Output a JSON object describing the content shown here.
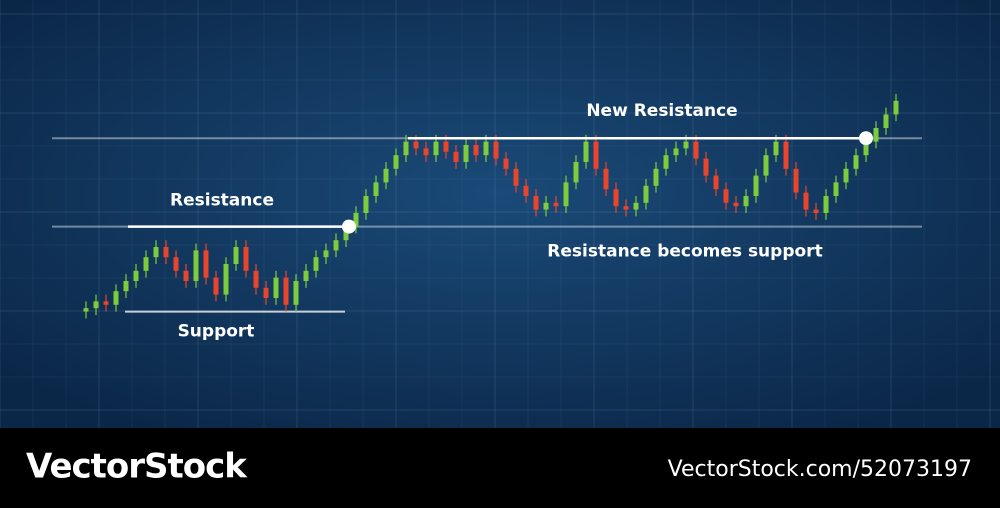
{
  "chart_data": {
    "type": "candlestick",
    "open": [
      26,
      27,
      29,
      28,
      32,
      35,
      38,
      42,
      45,
      42,
      38,
      35,
      44,
      36,
      31,
      40,
      45,
      38,
      33,
      30,
      36,
      28,
      35,
      38,
      42,
      44,
      47,
      51,
      55,
      60,
      64,
      68,
      72,
      76,
      74,
      72,
      76,
      73,
      70,
      75,
      72,
      76,
      71,
      68,
      63,
      60,
      56,
      58,
      57,
      64,
      70,
      76,
      68,
      62,
      57,
      56,
      58,
      63,
      68,
      72,
      74,
      76,
      71,
      66,
      62,
      58,
      57,
      60,
      66,
      72,
      76,
      68,
      61,
      56,
      55,
      60,
      64,
      68,
      72,
      76,
      80,
      84
    ],
    "high": [
      29,
      31,
      31,
      34,
      37,
      40,
      44,
      47,
      47,
      44,
      40,
      46,
      46,
      38,
      42,
      47,
      47,
      40,
      35,
      38,
      38,
      37,
      40,
      44,
      46,
      49,
      53,
      57,
      62,
      66,
      70,
      74,
      78,
      78,
      76,
      78,
      78,
      75,
      77,
      77,
      78,
      78,
      73,
      70,
      65,
      62,
      60,
      60,
      66,
      72,
      78,
      78,
      70,
      64,
      59,
      60,
      65,
      70,
      74,
      76,
      78,
      78,
      73,
      68,
      64,
      60,
      62,
      68,
      74,
      78,
      78,
      70,
      63,
      58,
      62,
      66,
      70,
      74,
      78,
      82,
      86,
      90
    ],
    "low": [
      24,
      25,
      26,
      26,
      30,
      33,
      36,
      40,
      40,
      36,
      33,
      33,
      34,
      29,
      29,
      38,
      36,
      31,
      28,
      28,
      26,
      26,
      33,
      36,
      40,
      42,
      45,
      49,
      53,
      58,
      62,
      66,
      70,
      72,
      70,
      70,
      71,
      68,
      68,
      70,
      70,
      69,
      66,
      61,
      58,
      54,
      54,
      55,
      55,
      62,
      68,
      66,
      60,
      55,
      54,
      54,
      56,
      61,
      66,
      70,
      72,
      69,
      64,
      60,
      56,
      55,
      55,
      58,
      64,
      70,
      66,
      59,
      54,
      53,
      53,
      58,
      62,
      66,
      70,
      74,
      78,
      82
    ],
    "close": [
      27,
      29,
      28,
      32,
      35,
      38,
      42,
      45,
      42,
      38,
      35,
      44,
      36,
      31,
      40,
      45,
      38,
      33,
      30,
      36,
      28,
      35,
      38,
      42,
      44,
      47,
      51,
      55,
      60,
      64,
      68,
      72,
      76,
      74,
      72,
      76,
      73,
      70,
      75,
      72,
      76,
      71,
      68,
      63,
      60,
      56,
      58,
      57,
      64,
      70,
      76,
      68,
      62,
      57,
      56,
      58,
      63,
      68,
      72,
      74,
      76,
      71,
      66,
      62,
      58,
      57,
      60,
      66,
      72,
      76,
      68,
      61,
      56,
      55,
      60,
      64,
      68,
      72,
      76,
      80,
      84,
      88
    ],
    "up_color": "#7ccc3c",
    "down_color": "#e8452c",
    "ylim": [
      0,
      100
    ],
    "annotations": [
      {
        "text": "Resistance",
        "value": 51
      },
      {
        "text": "Support",
        "value": 26
      },
      {
        "text": "New Resistance",
        "value": 77
      },
      {
        "text": "Resistance becomes support",
        "value": 51
      }
    ]
  },
  "watermark": {
    "brand": "VectorStock",
    "id": "VectorStock.com/52073197"
  }
}
